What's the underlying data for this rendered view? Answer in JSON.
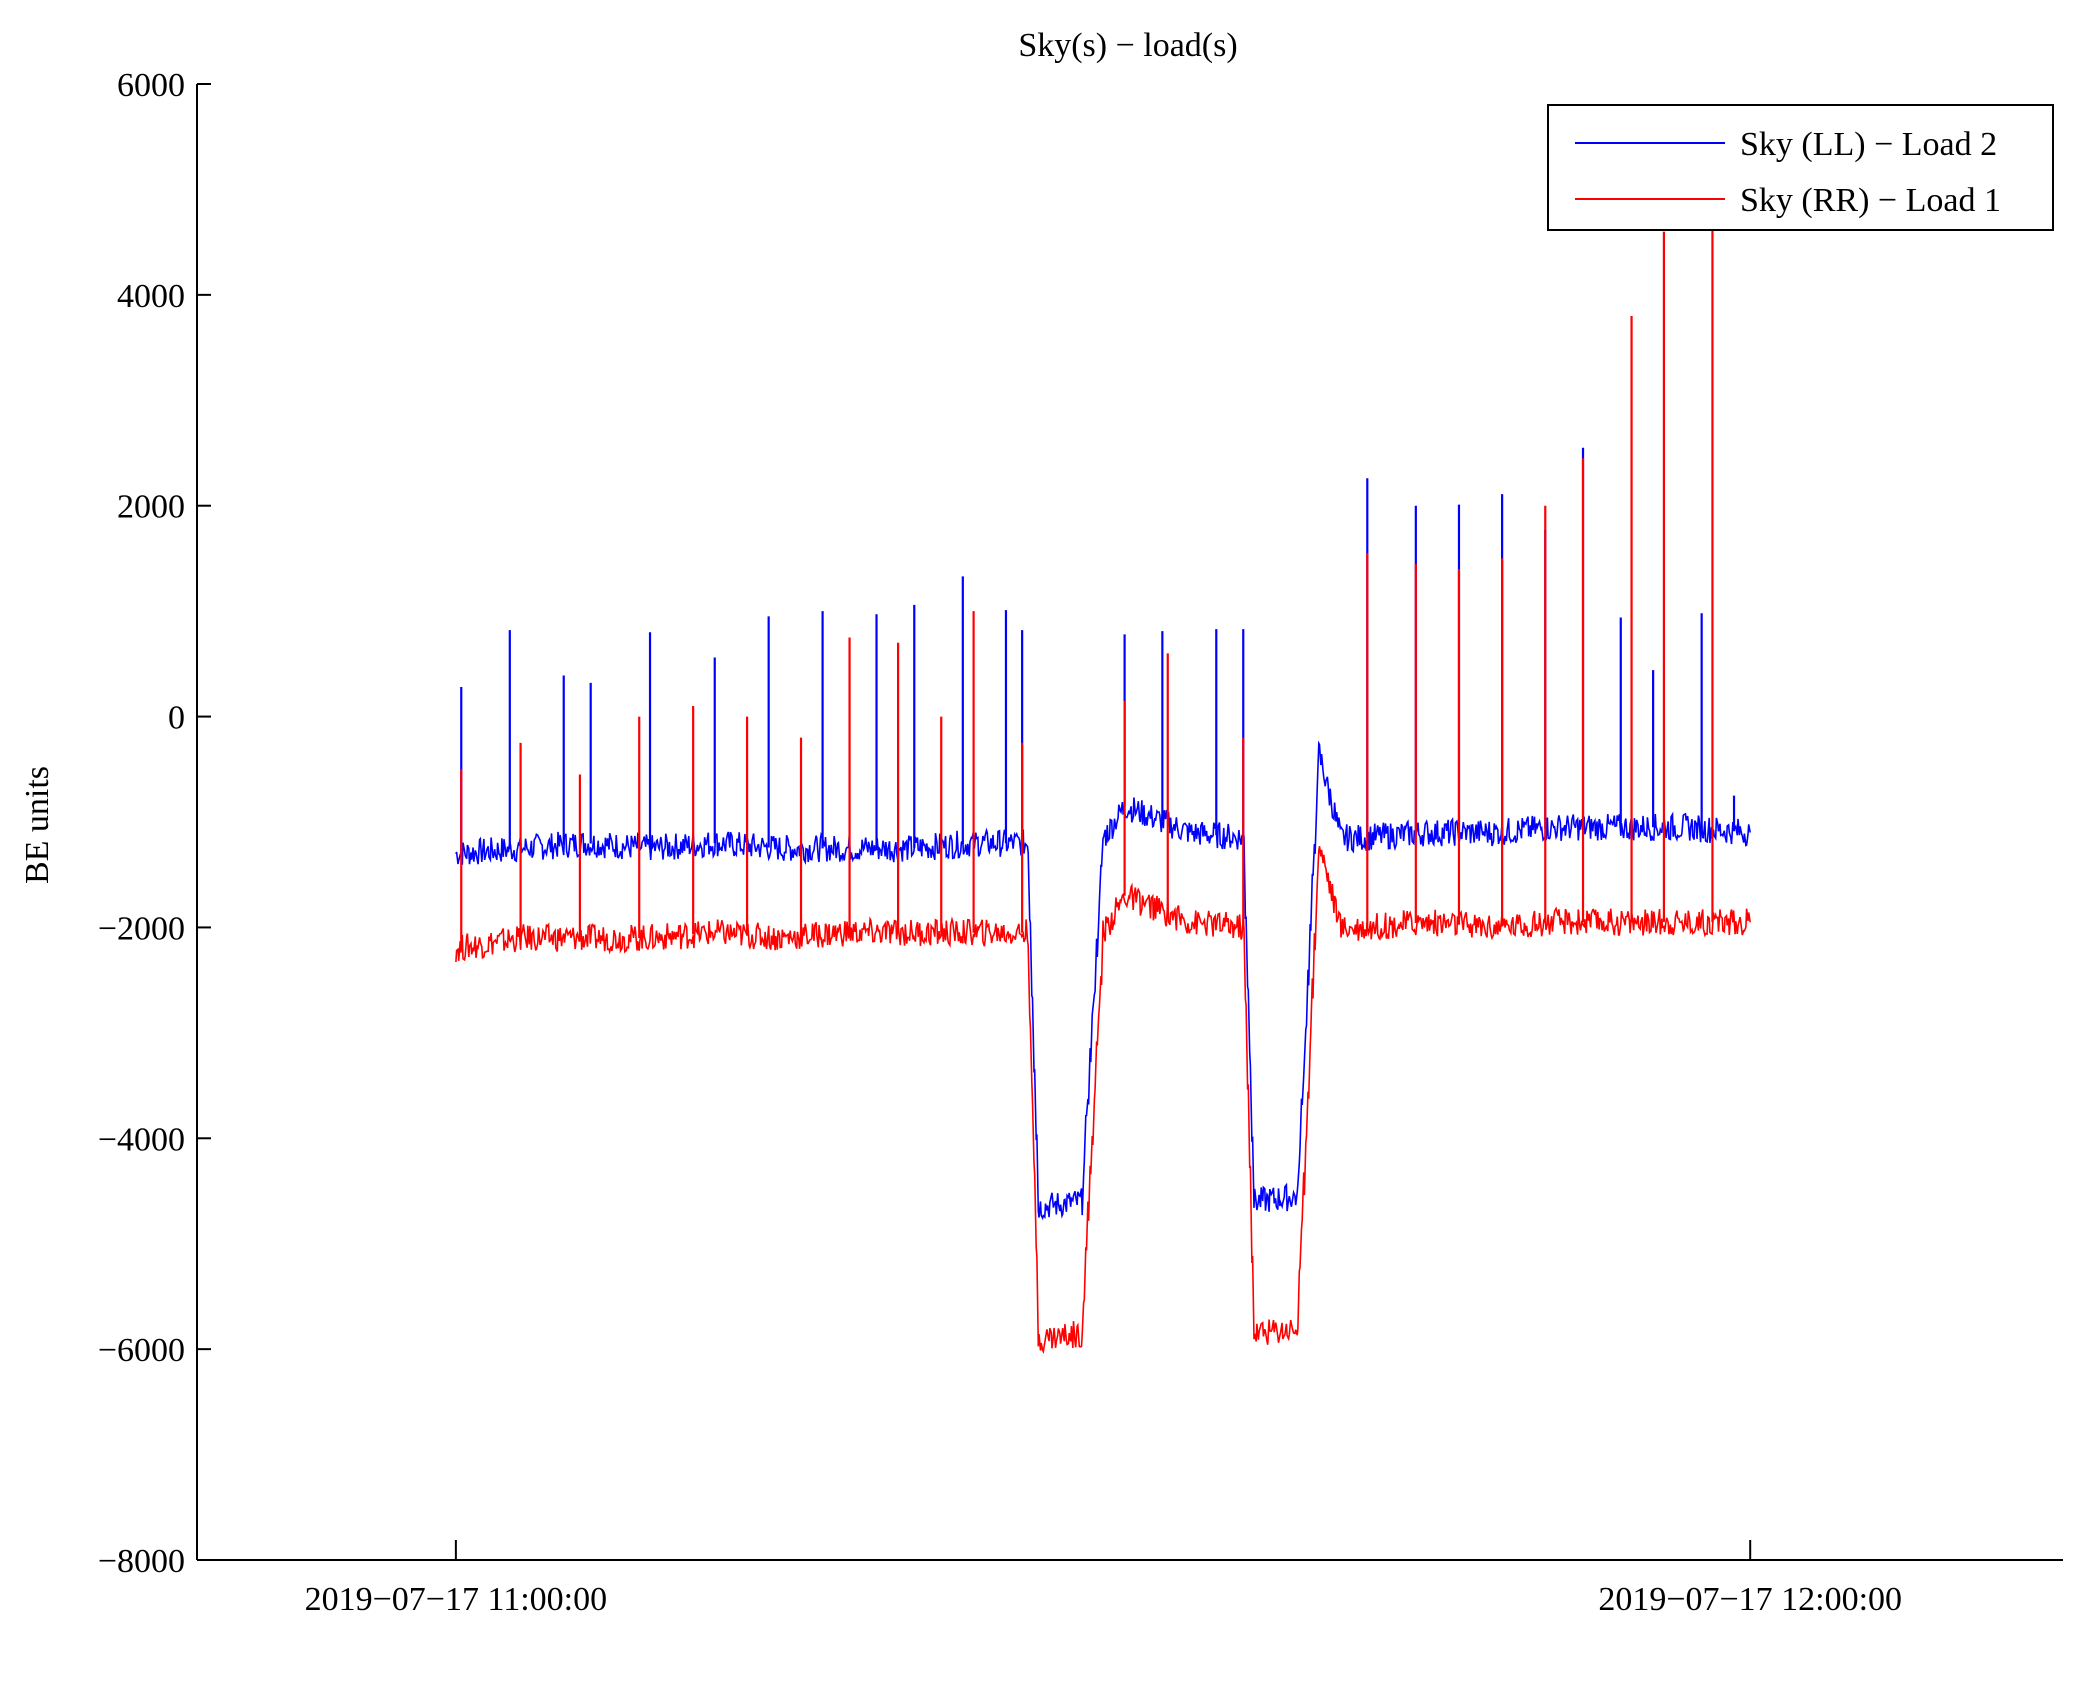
{
  "chart_data": {
    "type": "line",
    "title": "Sky(s) − load(s)",
    "xlabel": "",
    "ylabel": "BE units",
    "x_ticks": [
      {
        "value": "2019-07-17T11:00:00",
        "label": "2019−07−17 11:00:00"
      },
      {
        "value": "2019-07-17T12:00:00",
        "label": "2019−07−17 12:00:00"
      }
    ],
    "xlim": [
      "2019-07-17T10:48:00",
      "2019-07-17T12:14:30"
    ],
    "ylim": [
      -8000,
      6000
    ],
    "y_ticks": [
      6000,
      4000,
      2000,
      0,
      -2000,
      -4000,
      -6000,
      -8000
    ],
    "y_tick_labels": [
      "6000",
      "4000",
      "2000",
      "0",
      "−2000",
      "−4000",
      "−6000",
      "−8000"
    ],
    "grid": false,
    "legend_position": "top-right",
    "series": [
      {
        "name": "Sky (LL) − Load 2",
        "color": "#0000ff",
        "x": [
          "2019-07-17T11:00:00",
          "2019-07-17T11:03:00",
          "2019-07-17T11:06:00",
          "2019-07-17T11:09:00",
          "2019-07-17T11:12:00",
          "2019-07-17T11:15:00",
          "2019-07-17T11:18:00",
          "2019-07-17T11:21:00",
          "2019-07-17T11:24:00",
          "2019-07-17T11:26:30",
          "2019-07-17T11:27:00",
          "2019-07-17T11:29:00",
          "2019-07-17T11:30:00",
          "2019-07-17T11:31:00",
          "2019-07-17T11:34:00",
          "2019-07-17T11:36:30",
          "2019-07-17T11:37:00",
          "2019-07-17T11:39:00",
          "2019-07-17T11:40:00",
          "2019-07-17T11:41:00",
          "2019-07-17T11:42:00",
          "2019-07-17T11:45:00",
          "2019-07-17T11:48:00",
          "2019-07-17T11:51:00",
          "2019-07-17T11:54:00",
          "2019-07-17T11:57:00",
          "2019-07-17T12:00:00"
        ],
        "y": [
          -1300,
          -1250,
          -1200,
          -1250,
          -1200,
          -1250,
          -1250,
          -1250,
          -1200,
          -1200,
          -4650,
          -4600,
          -1150,
          -850,
          -1100,
          -1150,
          -4600,
          -4550,
          -350,
          -1150,
          -1150,
          -1100,
          -1100,
          -1050,
          -1050,
          -1050,
          -1100
        ],
        "spikes_x": [
          "2019-07-17T11:00:15",
          "2019-07-17T11:02:30",
          "2019-07-17T11:05:00",
          "2019-07-17T11:06:15",
          "2019-07-17T11:09:00",
          "2019-07-17T11:12:00",
          "2019-07-17T11:14:30",
          "2019-07-17T11:17:00",
          "2019-07-17T11:19:30",
          "2019-07-17T11:21:15",
          "2019-07-17T11:23:30",
          "2019-07-17T11:25:30",
          "2019-07-17T11:26:15",
          "2019-07-17T11:31:00",
          "2019-07-17T11:32:45",
          "2019-07-17T11:35:15",
          "2019-07-17T11:36:30",
          "2019-07-17T11:42:15",
          "2019-07-17T11:44:30",
          "2019-07-17T11:46:30",
          "2019-07-17T11:48:30",
          "2019-07-17T11:50:30",
          "2019-07-17T11:52:15",
          "2019-07-17T11:54:00",
          "2019-07-17T11:55:30",
          "2019-07-17T11:57:45",
          "2019-07-17T11:59:15"
        ],
        "spikes_y": [
          280,
          820,
          390,
          320,
          800,
          560,
          950,
          1000,
          970,
          1060,
          1330,
          1010,
          820,
          780,
          810,
          830,
          830,
          2260,
          2000,
          2010,
          2110,
          1770,
          2550,
          940,
          440,
          980,
          -750
        ]
      },
      {
        "name": "Sky (RR) − Load 1",
        "color": "#ff0000",
        "x": [
          "2019-07-17T11:00:00",
          "2019-07-17T11:03:00",
          "2019-07-17T11:06:00",
          "2019-07-17T11:09:00",
          "2019-07-17T11:12:00",
          "2019-07-17T11:15:00",
          "2019-07-17T11:18:00",
          "2019-07-17T11:21:00",
          "2019-07-17T11:24:00",
          "2019-07-17T11:26:30",
          "2019-07-17T11:27:00",
          "2019-07-17T11:29:00",
          "2019-07-17T11:30:00",
          "2019-07-17T11:31:00",
          "2019-07-17T11:34:00",
          "2019-07-17T11:36:30",
          "2019-07-17T11:37:00",
          "2019-07-17T11:39:00",
          "2019-07-17T11:40:00",
          "2019-07-17T11:41:00",
          "2019-07-17T11:42:00",
          "2019-07-17T11:45:00",
          "2019-07-17T11:48:00",
          "2019-07-17T11:51:00",
          "2019-07-17T11:54:00",
          "2019-07-17T11:57:00",
          "2019-07-17T12:00:00"
        ],
        "y": [
          -2200,
          -2100,
          -2100,
          -2100,
          -2050,
          -2100,
          -2050,
          -2050,
          -2050,
          -2050,
          -5900,
          -5850,
          -2050,
          -1700,
          -1950,
          -2000,
          -5850,
          -5800,
          -1200,
          -2000,
          -2000,
          -1950,
          -2000,
          -1950,
          -1950,
          -1950,
          -1950
        ],
        "spikes_x": [
          "2019-07-17T11:00:15",
          "2019-07-17T11:03:00",
          "2019-07-17T11:05:45",
          "2019-07-17T11:08:30",
          "2019-07-17T11:11:00",
          "2019-07-17T11:13:30",
          "2019-07-17T11:16:00",
          "2019-07-17T11:18:15",
          "2019-07-17T11:20:30",
          "2019-07-17T11:22:30",
          "2019-07-17T11:24:00",
          "2019-07-17T11:26:15",
          "2019-07-17T11:31:00",
          "2019-07-17T11:33:00",
          "2019-07-17T11:36:30",
          "2019-07-17T11:42:15",
          "2019-07-17T11:44:30",
          "2019-07-17T11:46:30",
          "2019-07-17T11:48:30",
          "2019-07-17T11:50:30",
          "2019-07-17T11:52:15",
          "2019-07-17T11:54:30",
          "2019-07-17T11:56:00",
          "2019-07-17T11:58:15"
        ],
        "spikes_y": [
          -500,
          -250,
          -550,
          0,
          100,
          0,
          -200,
          750,
          700,
          0,
          1000,
          -250,
          150,
          600,
          -200,
          1550,
          1450,
          1400,
          1500,
          2000,
          2450,
          3800,
          4600,
          4800
        ]
      }
    ]
  }
}
